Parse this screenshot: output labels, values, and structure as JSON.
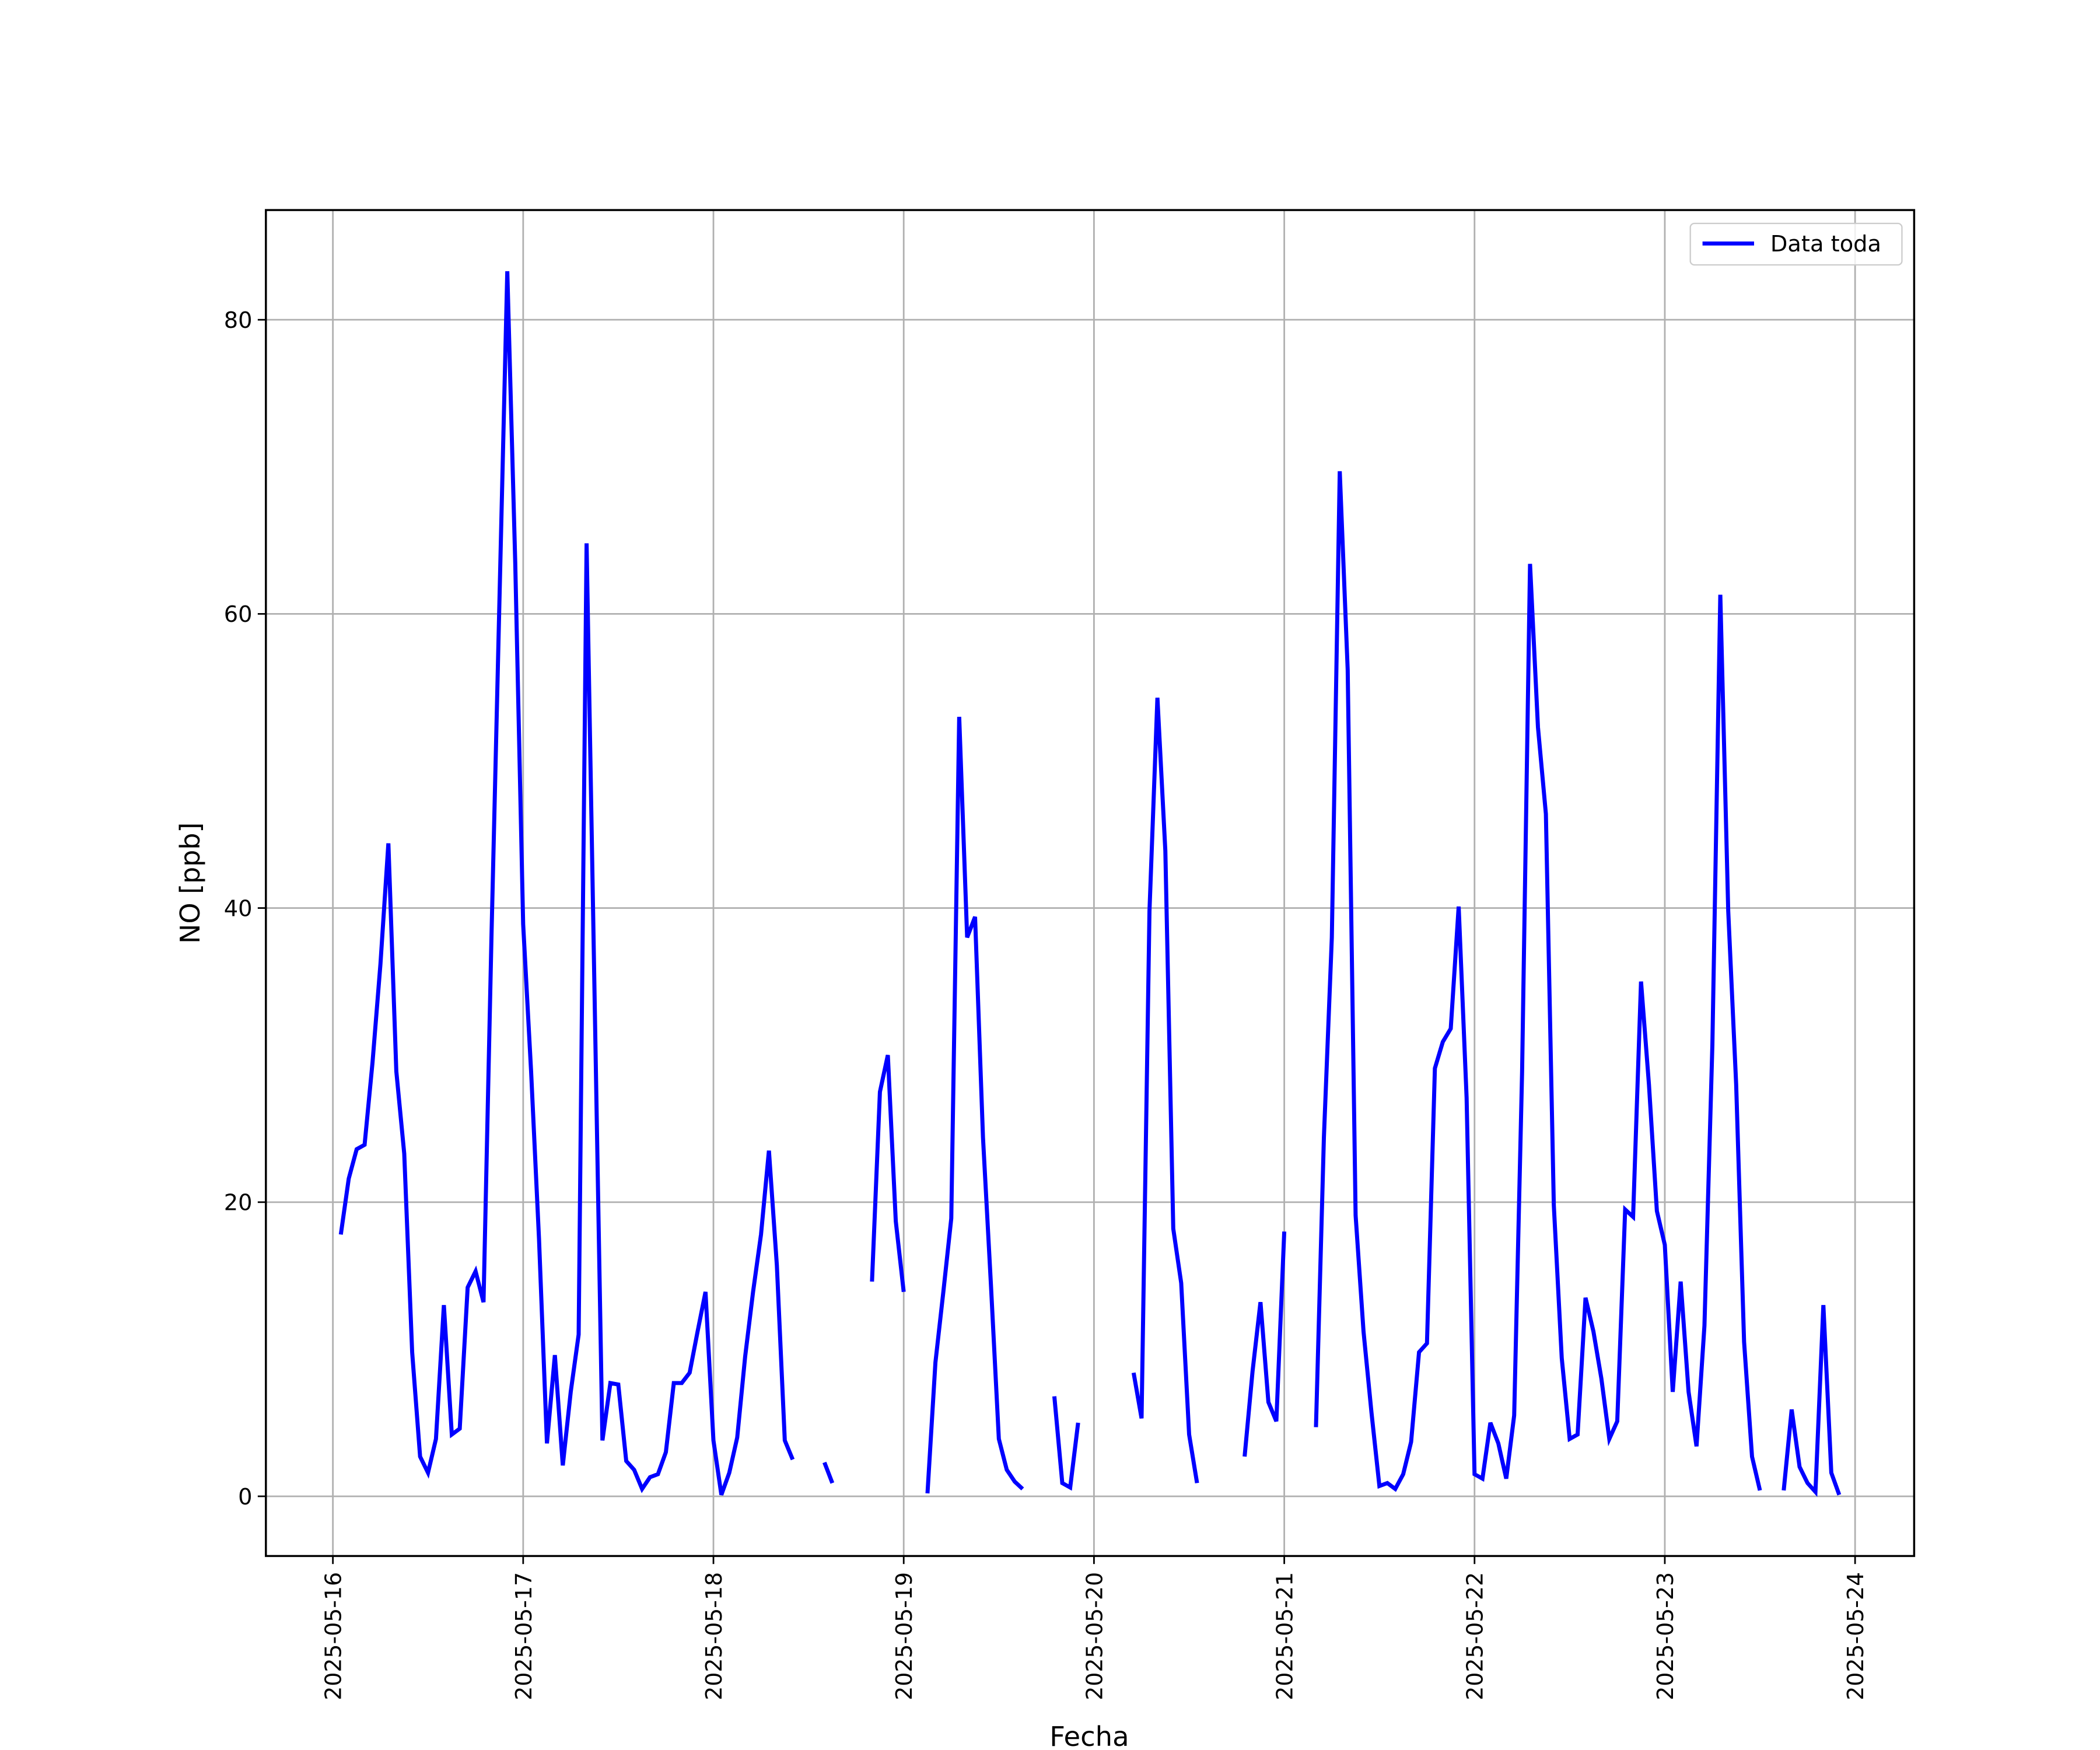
{
  "chart_data": {
    "type": "line",
    "x_label": "Fecha",
    "y_label": "NO [ppb]",
    "x": [
      "2025-05-16 01:00",
      "2025-05-16 02:00",
      "2025-05-16 03:00",
      "2025-05-16 04:00",
      "2025-05-16 05:00",
      "2025-05-16 06:00",
      "2025-05-16 07:00",
      "2025-05-16 08:00",
      "2025-05-16 09:00",
      "2025-05-16 10:00",
      "2025-05-16 11:00",
      "2025-05-16 12:00",
      "2025-05-16 13:00",
      "2025-05-16 14:00",
      "2025-05-16 15:00",
      "2025-05-16 16:00",
      "2025-05-16 17:00",
      "2025-05-16 18:00",
      "2025-05-16 19:00",
      "2025-05-16 20:00",
      "2025-05-16 21:00",
      "2025-05-16 22:00",
      "2025-05-16 23:00",
      "2025-05-17 00:00",
      "2025-05-17 01:00",
      "2025-05-17 02:00",
      "2025-05-17 03:00",
      "2025-05-17 04:00",
      "2025-05-17 05:00",
      "2025-05-17 06:00",
      "2025-05-17 07:00",
      "2025-05-17 08:00",
      "2025-05-17 10:00",
      "2025-05-17 11:00",
      "2025-05-17 12:00",
      "2025-05-17 13:00",
      "2025-05-17 14:00",
      "2025-05-17 15:00",
      "2025-05-17 16:00",
      "2025-05-17 17:00",
      "2025-05-17 18:00",
      "2025-05-17 19:00",
      "2025-05-17 20:00",
      "2025-05-17 21:00",
      "2025-05-17 22:00",
      "2025-05-17 23:00",
      "2025-05-18 00:00",
      "2025-05-18 01:00",
      "2025-05-18 02:00",
      "2025-05-18 03:00",
      "2025-05-18 04:00",
      "2025-05-18 05:00",
      "2025-05-18 06:00",
      "2025-05-18 07:00",
      "2025-05-18 08:00",
      "2025-05-18 09:00",
      "2025-05-18 10:00",
      "2025-05-18 11:00",
      "2025-05-18 14:00",
      "2025-05-18 15:00",
      "2025-05-18 16:00",
      "2025-05-18 20:00",
      "2025-05-18 21:00",
      "2025-05-18 22:00",
      "2025-05-18 23:00",
      "2025-05-19 00:00",
      "2025-05-19 01:00",
      "2025-05-19 03:00",
      "2025-05-19 04:00",
      "2025-05-19 05:00",
      "2025-05-19 06:00",
      "2025-05-19 07:00",
      "2025-05-19 08:00",
      "2025-05-19 09:00",
      "2025-05-19 10:00",
      "2025-05-19 11:00",
      "2025-05-19 12:00",
      "2025-05-19 13:00",
      "2025-05-19 14:00",
      "2025-05-19 15:00",
      "2025-05-19 16:00",
      "2025-05-19 19:00",
      "2025-05-19 20:00",
      "2025-05-19 21:00",
      "2025-05-19 22:00",
      "2025-05-19 23:00",
      "2025-05-20 05:00",
      "2025-05-20 06:00",
      "2025-05-20 07:00",
      "2025-05-20 08:00",
      "2025-05-20 09:00",
      "2025-05-20 10:00",
      "2025-05-20 11:00",
      "2025-05-20 12:00",
      "2025-05-20 13:00",
      "2025-05-20 14:00",
      "2025-05-20 19:00",
      "2025-05-20 20:00",
      "2025-05-20 21:00",
      "2025-05-20 22:00",
      "2025-05-20 23:00",
      "2025-05-21 00:00",
      "2025-05-21 01:00",
      "2025-05-21 04:00",
      "2025-05-21 05:00",
      "2025-05-21 06:00",
      "2025-05-21 07:00",
      "2025-05-21 08:00",
      "2025-05-21 09:00",
      "2025-05-21 10:00",
      "2025-05-21 11:00",
      "2025-05-21 12:00",
      "2025-05-21 13:00",
      "2025-05-21 14:00",
      "2025-05-21 15:00",
      "2025-05-21 16:00",
      "2025-05-21 17:00",
      "2025-05-21 18:00",
      "2025-05-21 19:00",
      "2025-05-21 20:00",
      "2025-05-21 21:00",
      "2025-05-21 22:00",
      "2025-05-21 23:00",
      "2025-05-22 00:00",
      "2025-05-22 01:00",
      "2025-05-22 02:00",
      "2025-05-22 03:00",
      "2025-05-22 04:00",
      "2025-05-22 05:00",
      "2025-05-22 06:00",
      "2025-05-22 07:00",
      "2025-05-22 08:00",
      "2025-05-22 09:00",
      "2025-05-22 10:00",
      "2025-05-22 11:00",
      "2025-05-22 12:00",
      "2025-05-22 13:00",
      "2025-05-22 14:00",
      "2025-05-22 15:00",
      "2025-05-22 16:00",
      "2025-05-22 17:00",
      "2025-05-22 18:00",
      "2025-05-22 19:00",
      "2025-05-22 20:00",
      "2025-05-22 21:00",
      "2025-05-22 22:00",
      "2025-05-22 23:00",
      "2025-05-23 00:00",
      "2025-05-23 01:00",
      "2025-05-23 02:00",
      "2025-05-23 03:00",
      "2025-05-23 04:00",
      "2025-05-23 05:00",
      "2025-05-23 06:00",
      "2025-05-23 07:00",
      "2025-05-23 08:00",
      "2025-05-23 09:00",
      "2025-05-23 10:00",
      "2025-05-23 11:00",
      "2025-05-23 12:00",
      "2025-05-23 13:00",
      "2025-05-23 15:00",
      "2025-05-23 16:00",
      "2025-05-23 17:00",
      "2025-05-23 18:00",
      "2025-05-23 19:00",
      "2025-05-23 20:00",
      "2025-05-23 21:00",
      "2025-05-23 22:00"
    ],
    "series": [
      {
        "name": "Data toda",
        "color": "#0000ff",
        "values": [
          17.8,
          21.6,
          23.6,
          23.9,
          29.5,
          36.2,
          44.4,
          28.9,
          23.3,
          9.8,
          2.7,
          1.6,
          3.9,
          13.0,
          4.2,
          4.6,
          14.2,
          15.3,
          13.2,
          38,
          60.7,
          83.3,
          63.5,
          38.9,
          28.9,
          17.5,
          3.6,
          9.6,
          2.1,
          7.1,
          11,
          64.8,
          3.8,
          7.7,
          7.6,
          2.4,
          1.8,
          0.5,
          1.3,
          1.5,
          3.0,
          7.7,
          7.7,
          8.4,
          11.2,
          13.9,
          3.8,
          0.1,
          1.6,
          4.0,
          9.5,
          13.9,
          17.8,
          23.5,
          15.7,
          3.8,
          2.5,
          null,
          2.3,
          0.9,
          null,
          14.6,
          27.5,
          30,
          18.7,
          13.9,
          null,
          0.2,
          9.1,
          13.9,
          18.9,
          53,
          38,
          39.4,
          24.4,
          14.4,
          3.9,
          1.8,
          1.0,
          0.5,
          null,
          6.8,
          0.9,
          0.6,
          5.0,
          null,
          8.4,
          5.3,
          39.8,
          54.3,
          43.9,
          18.2,
          14.5,
          4.2,
          0.9,
          null,
          2.7,
          8.5,
          13.2,
          6.4,
          5.1,
          18,
          null,
          4.7,
          24.4,
          38,
          69.7,
          56.2,
          19.1,
          11.2,
          5.7,
          0.7,
          0.9,
          0.5,
          1.5,
          3.7,
          9.8,
          10.4,
          29.1,
          30.9,
          31.8,
          40.1,
          27.1,
          1.5,
          1.2,
          5.0,
          3.6,
          1.2,
          5.5,
          28.9,
          63.4,
          52.3,
          46.4,
          19.8,
          9.4,
          3.9,
          4.2,
          13.5,
          11.2,
          8,
          3.9,
          5.1,
          19.5,
          19,
          35,
          28,
          19.4,
          17.1,
          7.1,
          14.6,
          7.1,
          3.4,
          11.6,
          30.7,
          61.3,
          39.8,
          28,
          10.5,
          2.7,
          0.4,
          null,
          0.4,
          5.9,
          2.0,
          0.9,
          0.3,
          13.0,
          1.6,
          0.1
        ]
      }
    ],
    "xlim": [
      "2025-05-15 15:33",
      "2025-05-24 07:27"
    ],
    "xticks": [
      "2025-05-16",
      "2025-05-17",
      "2025-05-18",
      "2025-05-19",
      "2025-05-20",
      "2025-05-21",
      "2025-05-22",
      "2025-05-23",
      "2025-05-24"
    ],
    "ylim": [
      -4.06,
      87.46
    ],
    "yticks": [
      0,
      20,
      40,
      60,
      80
    ],
    "grid": true,
    "legend": "upper right"
  }
}
